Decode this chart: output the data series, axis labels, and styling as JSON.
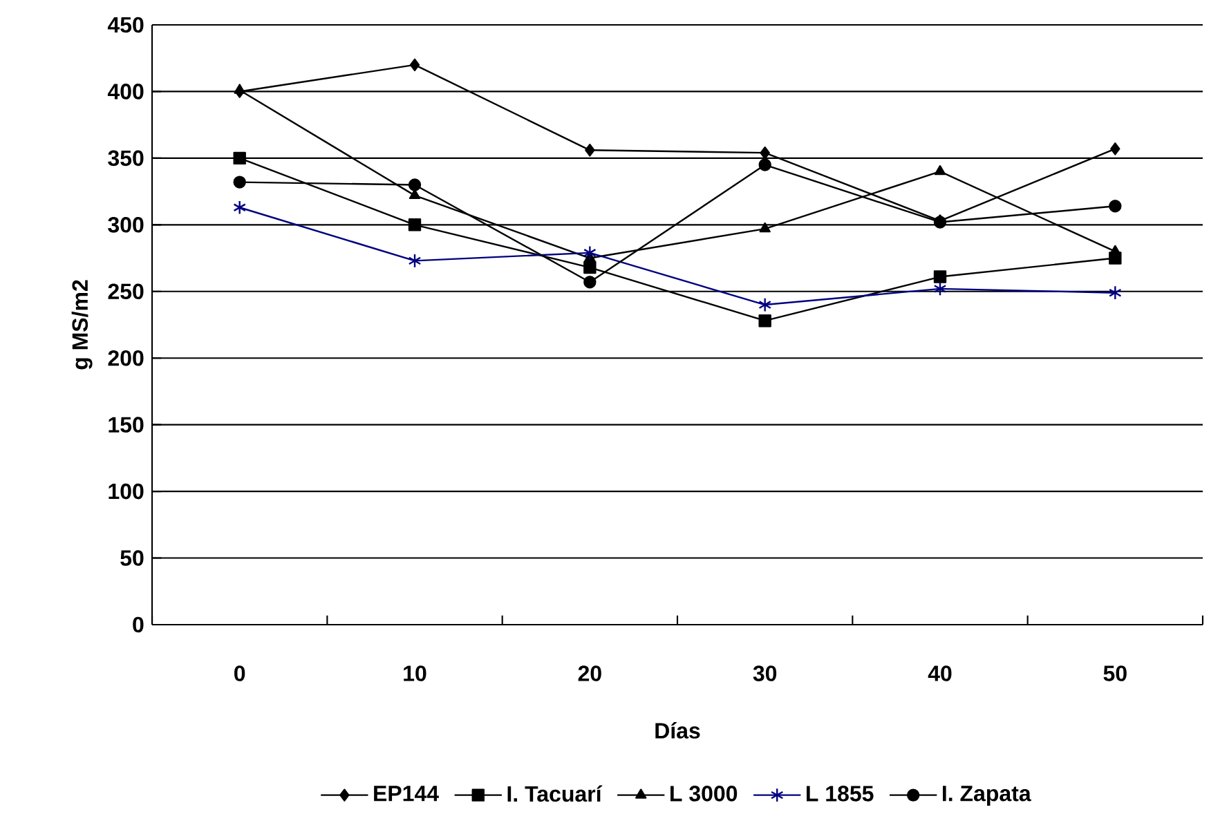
{
  "chart_data": {
    "type": "line",
    "xlabel": "Días",
    "ylabel": "g MS/m2",
    "categories": [
      "0",
      "10",
      "20",
      "30",
      "40",
      "50"
    ],
    "ylim": [
      0,
      450
    ],
    "yticks": [
      0,
      50,
      100,
      150,
      200,
      250,
      300,
      350,
      400,
      450
    ],
    "grid": "y",
    "legend": "bottom",
    "series": [
      {
        "name": "EP144",
        "color": "#000000",
        "marker": "diamond",
        "values": [
          400,
          420,
          356,
          354,
          303,
          357
        ]
      },
      {
        "name": "I. Tacuarí",
        "color": "#000000",
        "marker": "square",
        "values": [
          350,
          300,
          268,
          228,
          261,
          275
        ]
      },
      {
        "name": "L 3000",
        "color": "#000000",
        "marker": "triangle",
        "values": [
          401,
          322,
          275,
          297,
          340,
          280
        ]
      },
      {
        "name": "L 1855",
        "color": "#000080",
        "marker": "cross",
        "values": [
          313,
          273,
          279,
          240,
          252,
          249
        ]
      },
      {
        "name": "I. Zapata",
        "color": "#000000",
        "marker": "circle",
        "values": [
          332,
          330,
          257,
          345,
          302,
          314
        ]
      }
    ]
  }
}
